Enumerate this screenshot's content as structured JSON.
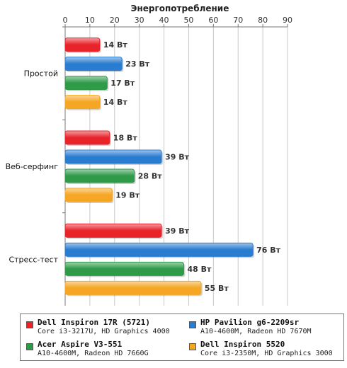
{
  "chart_data": {
    "type": "bar",
    "orientation": "horizontal",
    "title": "Энергопотребление",
    "xlim": [
      0,
      90
    ],
    "xticks": [
      0,
      10,
      20,
      30,
      40,
      50,
      60,
      70,
      80,
      90
    ],
    "grid": true,
    "legend_position": "bottom",
    "categories": [
      "Простой",
      "Веб-серфинг",
      "Стресс-тест"
    ],
    "unit": "Вт",
    "series": [
      {
        "name": "Dell Inspiron 17R (5721)",
        "subtitle": "Core i3-3217U, HD Graphics 4000",
        "color": "#e8232a",
        "values": [
          14,
          18,
          39
        ]
      },
      {
        "name": "HP Pavilion g6-2209sr",
        "subtitle": "A10-4600M, Radeon HD 7670M",
        "color": "#2a7cd0",
        "values": [
          23,
          39,
          76
        ]
      },
      {
        "name": "Acer Aspire V3-551",
        "subtitle": "A10-4600M, Radeon HD 7660G",
        "color": "#2f9a48",
        "values": [
          17,
          28,
          48
        ]
      },
      {
        "name": "Dell Inspiron 5520",
        "subtitle": "Core i3-2350M, HD Graphics 3000",
        "color": "#f5a623",
        "values": [
          14,
          19,
          55
        ]
      }
    ],
    "data_labels": [
      [
        "14 Вт",
        "23 Вт",
        "17 Вт",
        "14 Вт"
      ],
      [
        "18 Вт",
        "39 Вт",
        "28 Вт",
        "19 Вт"
      ],
      [
        "39 Вт",
        "76 Вт",
        "48 Вт",
        "55 Вт"
      ]
    ]
  }
}
